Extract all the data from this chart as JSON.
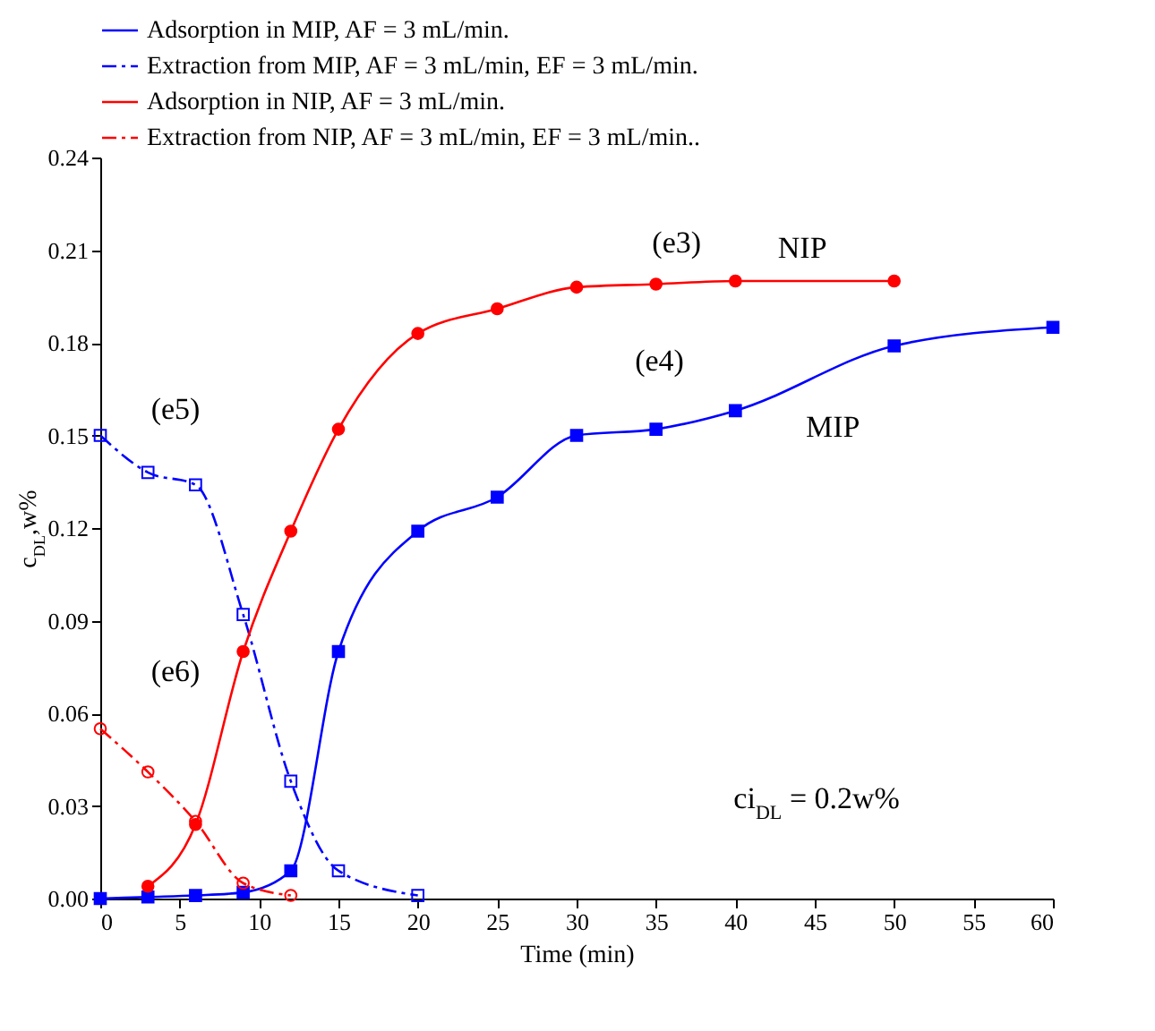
{
  "chart_data": {
    "type": "line",
    "xlabel": "Time (min)",
    "ylabel": "c$_{DL}$,w%",
    "xlim": [
      0,
      60
    ],
    "xticks": [
      0,
      5,
      10,
      15,
      20,
      25,
      30,
      35,
      40,
      45,
      50,
      55,
      60
    ],
    "ylim": [
      0,
      0.24
    ],
    "yticks": [
      {
        "value": 0,
        "label": "0.00"
      },
      {
        "value": 0.03,
        "label": "0.03"
      },
      {
        "value": 0.06,
        "label": "0.06"
      },
      {
        "value": 0.09,
        "label": "0.09"
      },
      {
        "value": 0.12,
        "label": "0.12"
      },
      {
        "value": 0.15,
        "label": "0.15"
      },
      {
        "value": 0.18,
        "label": "0.18"
      },
      {
        "value": 0.21,
        "label": "0.21"
      },
      {
        "value": 0.24,
        "label": "0.24"
      }
    ],
    "grid": false,
    "legend": "top left",
    "series": [
      {
        "name": "Adsorption in MIP, AF = 3 mL/min.",
        "color": "#0000ff",
        "marker": "square",
        "line_style": "solid",
        "x": [
          0,
          3,
          6,
          9,
          12,
          15,
          20,
          25,
          30,
          35,
          40,
          50,
          60
        ],
        "values": [
          0,
          0.0005,
          0.001,
          0.002,
          0.009,
          0.08,
          0.119,
          0.13,
          0.15,
          0.152,
          0.158,
          0.179,
          0.185
        ]
      },
      {
        "name": "Extraction from MIP, AF = 3 mL/min, EF = 3 mL/min.",
        "color": "#0000ff",
        "marker": "square",
        "line_style": "dashed",
        "x": [
          0,
          3,
          6,
          9,
          12,
          15,
          20
        ],
        "values": [
          0.15,
          0.138,
          0.134,
          0.092,
          0.038,
          0.009,
          0.001
        ]
      },
      {
        "name": "Adsorption in NIP, AF = 3 mL/min.",
        "color": "#ff0000",
        "marker": "circle",
        "line_style": "solid",
        "x": [
          3,
          6,
          9,
          12,
          15,
          20,
          25,
          30,
          35,
          40,
          50
        ],
        "values": [
          0.004,
          0.024,
          0.08,
          0.119,
          0.152,
          0.183,
          0.191,
          0.198,
          0.199,
          0.2,
          0.2
        ]
      },
      {
        "name": "Extraction from NIP, AF = 3 mL/min, EF = 3 mL/min..",
        "color": "#ff0000",
        "marker": "circle",
        "line_style": "dashed",
        "x": [
          0,
          3,
          6,
          9,
          12
        ],
        "values": [
          0.055,
          0.041,
          0.025,
          0.005,
          0.001
        ]
      }
    ],
    "annotations": [
      "(e3)",
      "(e4)",
      "(e5)",
      "(e6)",
      "NIP",
      "MIP",
      "ci$_{DL}$ = 0.2w%"
    ]
  }
}
